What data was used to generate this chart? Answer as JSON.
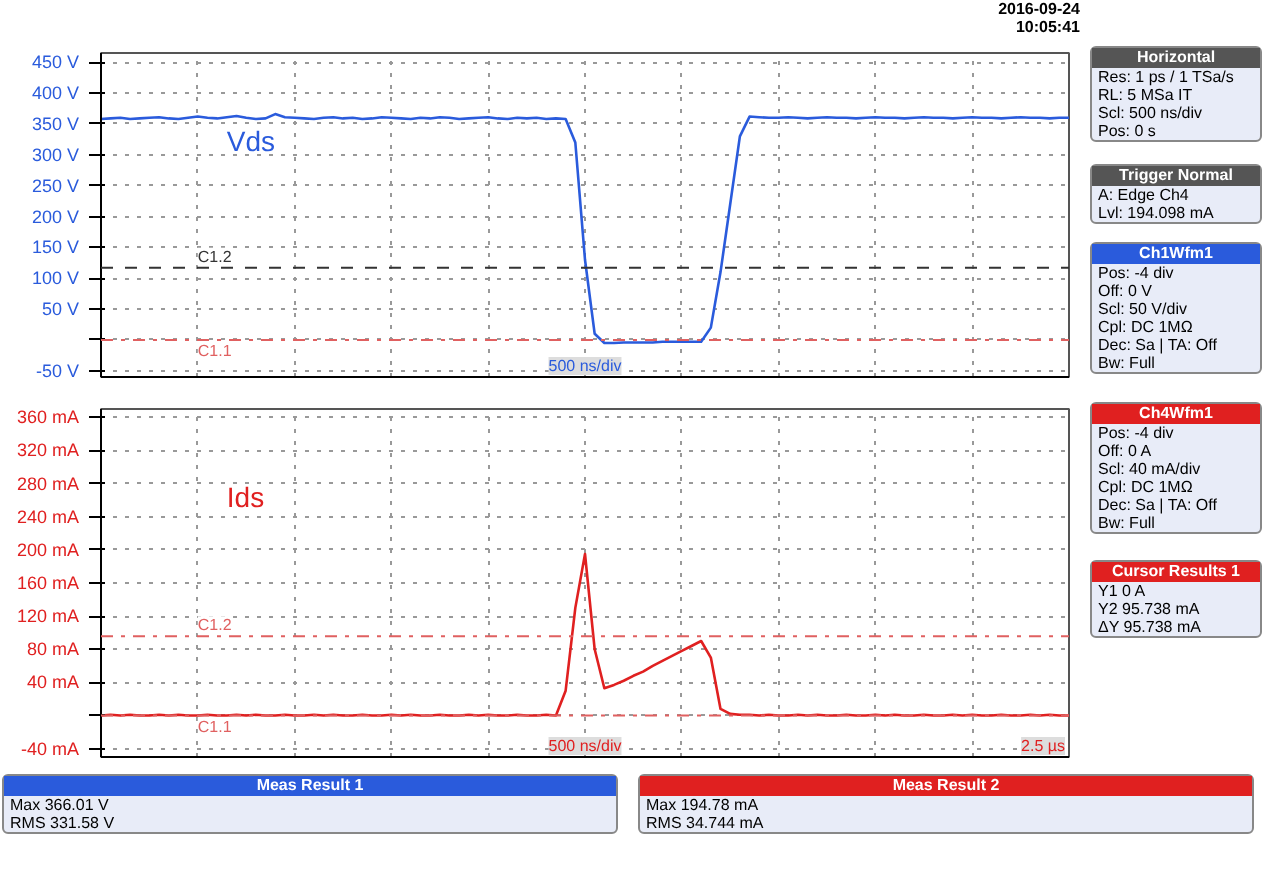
{
  "chart_data": [
    {
      "type": "line",
      "ylim": [
        -60,
        465
      ],
      "categories": [
        null,
        null,
        null,
        null,
        null,
        null,
        null,
        null,
        null,
        null,
        null,
        null,
        null,
        null,
        null,
        null,
        null,
        null,
        null,
        null,
        null,
        null,
        null,
        null,
        null,
        null,
        null,
        null,
        null,
        null,
        null,
        null,
        null,
        null,
        null,
        null,
        null,
        null,
        null,
        null,
        null,
        null,
        null,
        null,
        null,
        null,
        null,
        null,
        null,
        null,
        null,
        null,
        null,
        null,
        null,
        null,
        null,
        null,
        null,
        null,
        null,
        null,
        null,
        null,
        null,
        null,
        null,
        null,
        null,
        null,
        null,
        null,
        null,
        null,
        null,
        null,
        null,
        null,
        null,
        null,
        null,
        null,
        null,
        null,
        null,
        null,
        null,
        null,
        null,
        null,
        null,
        null,
        null,
        null,
        null,
        null,
        null,
        null,
        null,
        null,
        null
      ],
      "yticks": [
        {
          "value": -50,
          "label": "-50 V"
        },
        {
          "value": 0,
          "label": null
        },
        {
          "value": 50,
          "label": "50 V"
        },
        {
          "value": 100,
          "label": "100 V"
        },
        {
          "value": 150,
          "label": "150 V"
        },
        {
          "value": 200,
          "label": "200 V"
        },
        {
          "value": 250,
          "label": "250 V"
        },
        {
          "value": 300,
          "label": "300 V"
        },
        {
          "value": 350,
          "label": "350 V"
        },
        {
          "value": 400,
          "label": "400 V"
        },
        {
          "value": 450,
          "label": "450 V"
        }
      ],
      "tick_labels": "y",
      "grid": true,
      "marker": "none",
      "line_style": "solid",
      "series": [
        {
          "name": "Vds",
          "color": "#2a5bdc",
          "values": [
            358,
            359,
            360,
            358,
            359,
            360,
            361,
            359,
            358,
            360,
            362,
            360,
            359,
            361,
            363,
            360,
            358,
            359,
            366,
            361,
            360,
            359,
            358,
            360,
            361,
            359,
            360,
            358,
            359,
            361,
            360,
            359,
            358,
            360,
            359,
            361,
            360,
            358,
            359,
            360,
            361,
            359,
            358,
            360,
            359,
            360,
            358,
            359,
            358,
            320,
            130,
            10,
            -5,
            -5,
            -4,
            -4,
            -4,
            -4,
            -3,
            -3,
            -3,
            -3,
            -3,
            20,
            110,
            220,
            330,
            362,
            361,
            360,
            360,
            361,
            360,
            359,
            360,
            361,
            360,
            360,
            359,
            360,
            361,
            360,
            360,
            359,
            360,
            361,
            360,
            360,
            359,
            360,
            361,
            360,
            360,
            359,
            360,
            361,
            360,
            360,
            359,
            360,
            360
          ]
        }
      ],
      "ref_lines": [
        {
          "axis": "y",
          "value": 117,
          "label": "C1.2",
          "color": "#333333",
          "line_style": "dashed"
        },
        {
          "axis": "y",
          "value": 0,
          "label": "C1.1",
          "color": "#e06060",
          "line_style": "dashdot"
        }
      ],
      "annotations": [
        "500 ns/div",
        "2016-09-24\n10:05:41",
        "Horizontal\nRes: 1 ps / 1 TSa/s\nRL: 5 MSa   IT\nScl: 500 ns/div\nPos: 0 s",
        "Trigger   Normal\nA: Edge Ch4\nLvl: 194.098 mA",
        "Ch1Wfm1\nPos: -4 div\nOff: 0 V\nScl: 50 V/div\nCpl: DC 1MΩ\nDec: Sa | TA: Off\nBw: Full",
        "Meas Result 1\nMax 366.01 V\nRMS 331.58 V"
      ]
    },
    {
      "type": "line",
      "ylim": [
        -50,
        370
      ],
      "categories": [
        null,
        null,
        null,
        null,
        null,
        null,
        null,
        null,
        null,
        null,
        null,
        null,
        null,
        null,
        null,
        null,
        null,
        null,
        null,
        null,
        null,
        null,
        null,
        null,
        null,
        null,
        null,
        null,
        null,
        null,
        null,
        null,
        null,
        null,
        null,
        null,
        null,
        null,
        null,
        null,
        null,
        null,
        null,
        null,
        null,
        null,
        null,
        null,
        null,
        null,
        null,
        null,
        null,
        null,
        null,
        null,
        null,
        null,
        null,
        null,
        null,
        null,
        null,
        null,
        null,
        null,
        null,
        null,
        null,
        null,
        null,
        null,
        null,
        null,
        null,
        null,
        null,
        null,
        null,
        null,
        null,
        null,
        null,
        null,
        null,
        null,
        null,
        null,
        null,
        null,
        null,
        null,
        null,
        null,
        null,
        null,
        null,
        null,
        null,
        null,
        null
      ],
      "yticks": [
        {
          "value": -40,
          "label": "-40 mA"
        },
        {
          "value": 0,
          "label": null
        },
        {
          "value": 40,
          "label": "40 mA"
        },
        {
          "value": 80,
          "label": "80 mA"
        },
        {
          "value": 120,
          "label": "120 mA"
        },
        {
          "value": 160,
          "label": "160 mA"
        },
        {
          "value": 200,
          "label": "200 mA"
        },
        {
          "value": 240,
          "label": "240 mA"
        },
        {
          "value": 280,
          "label": "280 mA"
        },
        {
          "value": 320,
          "label": "320 mA"
        },
        {
          "value": 360,
          "label": "360 mA"
        }
      ],
      "tick_labels": "y",
      "grid": true,
      "marker": "none",
      "line_style": "solid",
      "series": [
        {
          "name": "Ids",
          "color": "#e02020",
          "values": [
            0,
            1,
            0,
            1,
            0,
            0,
            1,
            0,
            1,
            0,
            0,
            1,
            0,
            0,
            1,
            0,
            1,
            0,
            0,
            1,
            0,
            0,
            1,
            0,
            1,
            0,
            0,
            1,
            0,
            0,
            1,
            0,
            1,
            0,
            0,
            1,
            0,
            0,
            1,
            0,
            1,
            0,
            0,
            1,
            0,
            0,
            1,
            0,
            30,
            130,
            195,
            80,
            33,
            37,
            42,
            48,
            53,
            60,
            66,
            72,
            78,
            84,
            90,
            70,
            8,
            2,
            1,
            1,
            0,
            1,
            0,
            0,
            1,
            0,
            1,
            0,
            0,
            1,
            0,
            0,
            1,
            0,
            1,
            0,
            0,
            1,
            0,
            0,
            1,
            0,
            1,
            0,
            0,
            1,
            0,
            0,
            1,
            0,
            1,
            0,
            0
          ]
        }
      ],
      "ref_lines": [
        {
          "axis": "y",
          "value": 95.738,
          "label": "C1.2",
          "color": "#e06060",
          "line_style": "dashdot"
        },
        {
          "axis": "y",
          "value": 0,
          "label": "C1.1",
          "color": "#e06060",
          "line_style": "dashdot"
        }
      ],
      "annotations": [
        "500 ns/div",
        "2.5 µs",
        "Ch4Wfm1\nPos: -4 div\nOff: 0 A\nScl: 40 mA/div\nCpl: DC 1MΩ\nDec: Sa | TA: Off\nBw: Full",
        "Cursor Results 1\nY1   0 A\nY2   95.738 mA\nΔY   95.738 mA",
        "Meas Result 2\nMax 194.78 mA\nRMS 34.744 mA"
      ]
    }
  ]
}
